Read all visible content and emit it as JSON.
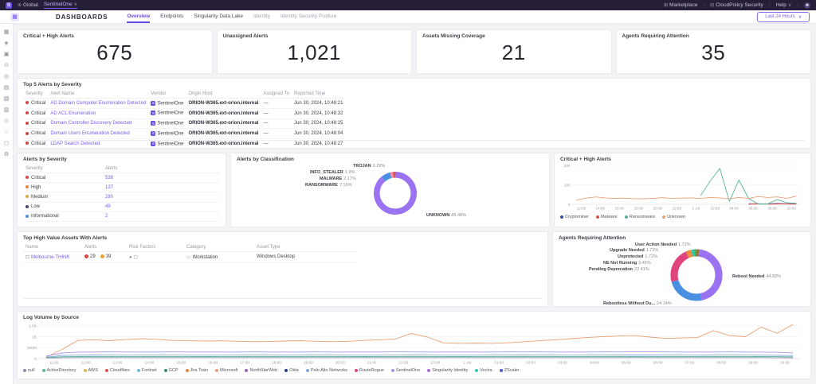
{
  "accent_color": "#6b4ee6",
  "topbar": {
    "product_initial": "S",
    "scope": "Global",
    "tenant": "SentinelOne",
    "marketplace": "Marketplace",
    "security_item": "CloudPolicy Security",
    "help": "Help"
  },
  "header": {
    "title": "DASHBOARDS",
    "tabs": [
      {
        "label": "Overview",
        "active": true
      },
      {
        "label": "Endpoints"
      },
      {
        "label": "Singularity Data Lake"
      },
      {
        "label": "Identity",
        "muted": true
      },
      {
        "label": "Identity Security Posture",
        "muted": true
      }
    ],
    "time_range_button": "Last 24 Hours"
  },
  "rail": {
    "icons": [
      {
        "name": "dashboards",
        "glyph": "▦"
      },
      {
        "name": "sentinels",
        "glyph": "◈"
      },
      {
        "name": "endpoints",
        "glyph": "▣"
      },
      {
        "name": "alerts",
        "glyph": "⊙"
      },
      {
        "name": "search",
        "glyph": "◎"
      },
      {
        "name": "graphs",
        "glyph": "▤"
      },
      {
        "name": "visibility",
        "glyph": "▧"
      },
      {
        "name": "reports",
        "glyph": "▥"
      },
      {
        "name": "policies",
        "glyph": "◇"
      },
      {
        "name": "network",
        "glyph": "○"
      },
      {
        "name": "tasks",
        "glyph": "◻"
      },
      {
        "name": "settings",
        "glyph": "⚙"
      }
    ]
  },
  "kpis": [
    {
      "title": "Critical + High Alerts",
      "value": "675"
    },
    {
      "title": "Unassigned Alerts",
      "value": "1,021"
    },
    {
      "title": "Assets Missing Coverage",
      "value": "21"
    },
    {
      "title": "Agents Requiring Attention",
      "value": "35"
    }
  ],
  "top_alerts": {
    "title": "Top 5 Alerts by Severity",
    "columns": [
      "Severity",
      "Alert Name",
      "Vendor",
      "Origin Host",
      "Assigned To",
      "Reported Time"
    ],
    "rows": [
      {
        "severity": "Critical",
        "severity_color": "#d04841",
        "name": "AD Domain Computer Enumeration Detected",
        "vendor": "SentinelOne",
        "origin": "ORION-W365.ext-orion.internal",
        "assigned": "—",
        "time": "Jun 30, 2024, 10:48:21"
      },
      {
        "severity": "Critical",
        "severity_color": "#d04841",
        "name": "AD ACL Enumeration",
        "vendor": "SentinelOne",
        "origin": "ORION-W365.ext-orion.internal",
        "assigned": "—",
        "time": "Jun 30, 2024, 10:48:32"
      },
      {
        "severity": "Critical",
        "severity_color": "#d04841",
        "name": "Domain Controller Discovery Detected",
        "vendor": "SentinelOne",
        "origin": "ORION-W365.ext-orion.internal",
        "assigned": "—",
        "time": "Jun 30, 2024, 10:48:25"
      },
      {
        "severity": "Critical",
        "severity_color": "#d04841",
        "name": "Domain Users Enumeration Detected",
        "vendor": "SentinelOne",
        "origin": "ORION-W365.ext-orion.internal",
        "assigned": "—",
        "time": "Jun 30, 2024, 10:48:04"
      },
      {
        "severity": "Critical",
        "severity_color": "#d04841",
        "name": "LDAP Search Detected",
        "vendor": "SentinelOne",
        "origin": "ORION-W365.ext-orion.internal",
        "assigned": "—",
        "time": "Jun 30, 2024, 10:48:27"
      }
    ]
  },
  "alerts_by_severity": {
    "title": "Alerts by Severity",
    "columns": [
      "Severity",
      "Alerts"
    ],
    "rows": [
      {
        "label": "Critical",
        "count": "538",
        "color": "#d04841"
      },
      {
        "label": "High",
        "count": "137",
        "color": "#e8833a"
      },
      {
        "label": "Medium",
        "count": "280",
        "color": "#d9a93a"
      },
      {
        "label": "Low",
        "count": "49",
        "color": "#4a4a68"
      },
      {
        "label": "Informational",
        "count": "2",
        "color": "#4a90e2"
      }
    ]
  },
  "high_value_assets": {
    "title": "Top High Value Assets With Alerts",
    "columns": [
      "Name",
      "Alerts",
      "Risk Factors",
      "Category",
      "Asset Type"
    ],
    "row": {
      "name": "Melbourne-THINK",
      "alert_badges": [
        {
          "count": "29",
          "color": "#d04841"
        },
        {
          "count": "39",
          "color": "#e8a13a"
        }
      ],
      "category": "Workstation",
      "asset_type": "Windows Desktop"
    }
  },
  "chart_data": [
    {
      "id": "alerts_by_classification",
      "type": "pie",
      "title": "Alerts by Classification",
      "donut": true,
      "slices": [
        {
          "label": "TROJAN",
          "pct": 0.29,
          "color": "#c4455e"
        },
        {
          "label": "UNKNOWN",
          "pct": 88.48,
          "color": "#9b72f2"
        },
        {
          "label": "RANSOMWARE",
          "pct": 7.16,
          "color": "#4a90e2"
        },
        {
          "label": "MALWARE",
          "pct": 2.17,
          "color": "#ef8ba7"
        },
        {
          "label": "INFO_STEALER",
          "pct": 1.9,
          "color": "#e05252"
        }
      ]
    },
    {
      "id": "critical_high_trend",
      "type": "line",
      "title": "Critical + High Alerts",
      "ylim": [
        0,
        200
      ],
      "yticks": [
        {
          "v": 0,
          "label": "0"
        },
        {
          "v": 100,
          "label": "100"
        },
        {
          "v": 200,
          "label": "200"
        }
      ],
      "xticks": [
        "12:00",
        "14:00",
        "16:00",
        "18:00",
        "20:00",
        "22:00",
        "1 Jul",
        "02:00",
        "04:00",
        "06:00",
        "08:00",
        "10:00"
      ],
      "legend_position": "bottom",
      "grid": true,
      "series": [
        {
          "name": "Cryptominer",
          "color": "#3b4a9f",
          "values": [
            null,
            null,
            null,
            null,
            null,
            null,
            null,
            null,
            null,
            null,
            null,
            null,
            null,
            null,
            null,
            null,
            null,
            null,
            2,
            3,
            2,
            4,
            3,
            2
          ]
        },
        {
          "name": "Malware",
          "color": "#d94f4f",
          "values": [
            null,
            null,
            null,
            null,
            null,
            null,
            null,
            null,
            null,
            null,
            null,
            null,
            null,
            null,
            null,
            null,
            null,
            null,
            1,
            2,
            1,
            2,
            2,
            1
          ]
        },
        {
          "name": "Ransomware",
          "color": "#54b397",
          "values": [
            null,
            null,
            null,
            null,
            null,
            null,
            null,
            null,
            null,
            null,
            null,
            null,
            null,
            45,
            120,
            185,
            15,
            125,
            30,
            2,
            2,
            25,
            8,
            5
          ]
        },
        {
          "name": "Unknown",
          "color": "#e8a075",
          "values": [
            22,
            32,
            38,
            33,
            30,
            32,
            29,
            28,
            31,
            34,
            30,
            32,
            33,
            30,
            35,
            33,
            28,
            35,
            30,
            40,
            35,
            38,
            30,
            42
          ]
        }
      ]
    },
    {
      "id": "agents_requiring_attention",
      "type": "pie",
      "title": "Agents Requiring Attention",
      "donut": true,
      "slices": [
        {
          "label": "User Action Needed",
          "pct": 1.72,
          "color": "#8a7a3a"
        },
        {
          "label": "Reboot Needed",
          "pct": 44.83,
          "color": "#9b72f2"
        },
        {
          "label": "Rebootless Without Du...",
          "pct": 24.14,
          "color": "#4a90e2"
        },
        {
          "label": "Pending Deprecation",
          "pct": 22.41,
          "color": "#e0447c"
        },
        {
          "label": "NE Not Running",
          "pct": 3.45,
          "color": "#f08c3a"
        },
        {
          "label": "Unprotected",
          "pct": 1.72,
          "color": "#36c6ad"
        },
        {
          "label": "Upgrade Needed",
          "pct": 1.72,
          "color": "#4caf50"
        }
      ]
    },
    {
      "id": "log_volume_by_source",
      "type": "line",
      "title": "Log Volume by Source",
      "ylim": [
        0,
        1600
      ],
      "yticks": [
        {
          "v": 0,
          "label": "0"
        },
        {
          "v": 500,
          "label": "500M"
        },
        {
          "v": 1000,
          "label": "1B"
        },
        {
          "v": 1500,
          "label": "1.5B"
        }
      ],
      "xticks": [
        "11:00",
        "12:00",
        "13:00",
        "14:00",
        "15:00",
        "16:00",
        "17:00",
        "18:00",
        "19:00",
        "20:00",
        "21:00",
        "22:00",
        "23:00",
        "1 Jul",
        "01:00",
        "02:00",
        "03:00",
        "04:00",
        "05:00",
        "06:00",
        "07:00",
        "08:00",
        "09:00",
        "10:00"
      ],
      "legend_position": "bottom",
      "grid": true,
      "series": [
        {
          "name": "Microsoft",
          "color": "#e8a075",
          "values": [
            60,
            420,
            830,
            860,
            820,
            870,
            910,
            880,
            830,
            810,
            800,
            810,
            790,
            770,
            780,
            800,
            820,
            790,
            770,
            790,
            830,
            860,
            900,
            1150,
            980,
            720,
            700,
            710,
            700,
            720,
            760,
            810,
            860,
            910,
            960,
            1000,
            1030,
            1050,
            980,
            920,
            940,
            960,
            1280,
            1050,
            1000,
            1440,
            1160,
            1560
          ]
        },
        {
          "name": "SentinelOne",
          "color": "#a490ec",
          "values": [
            110,
            250,
            295,
            300,
            303,
            300,
            298,
            300,
            302,
            300,
            298,
            297,
            300,
            302,
            300,
            298,
            300,
            302,
            300,
            298,
            297,
            300,
            304,
            302,
            300,
            298,
            297,
            298,
            300,
            302,
            303,
            302,
            300,
            298,
            300,
            302,
            303,
            305,
            304,
            302,
            300,
            298,
            300,
            302,
            300,
            296,
            288,
            258
          ]
        },
        {
          "name": "Palo Alto Networks",
          "color": "#7da7d9",
          "values": [
            55,
            140,
            158,
            162,
            160,
            158,
            159,
            161,
            160,
            158,
            157,
            158,
            160,
            161,
            160,
            158,
            160,
            161,
            160,
            158,
            157,
            158,
            160,
            162,
            160,
            158,
            157,
            158,
            160,
            161,
            162,
            161,
            160,
            158,
            160,
            161,
            162,
            163,
            162,
            161,
            160,
            158,
            160,
            161,
            160,
            157,
            150,
            138
          ]
        },
        {
          "name": "ActiveDirectory",
          "color": "#56b89a",
          "values": [
            40,
            85,
            92,
            95,
            94,
            93,
            94,
            95,
            94,
            93,
            92,
            93,
            94,
            95,
            94,
            93,
            94,
            95,
            94,
            93,
            92,
            93,
            94,
            95,
            94,
            93,
            92,
            93,
            94,
            95,
            95,
            94,
            94,
            93,
            94,
            95,
            95,
            96,
            95,
            94,
            94,
            93,
            94,
            95,
            94,
            92,
            88,
            80
          ]
        },
        {
          "name": "null",
          "color": "#8a8fa8",
          "values": [
            25,
            40,
            44,
            45,
            45,
            44,
            45,
            45,
            44,
            44,
            43,
            44,
            45,
            45,
            44,
            44,
            45,
            45,
            44,
            44,
            43,
            44,
            45,
            45,
            44,
            44,
            43,
            44,
            45,
            45,
            45,
            44,
            44,
            43,
            44,
            45,
            45,
            46,
            45,
            44,
            44,
            43,
            44,
            45,
            44,
            43,
            41,
            36
          ]
        }
      ],
      "legend": [
        {
          "label": "null",
          "color": "#8a8fa8"
        },
        {
          "label": "ActiveDirectory",
          "color": "#56b89a"
        },
        {
          "label": "AWS",
          "color": "#d9b64f"
        },
        {
          "label": "Cloudflare",
          "color": "#d94f4f"
        },
        {
          "label": "Fortinet",
          "color": "#73b8de"
        },
        {
          "label": "GCP",
          "color": "#3a8f6a"
        },
        {
          "label": "Jira Train",
          "color": "#e8833a"
        },
        {
          "label": "Microsoft",
          "color": "#e8a075"
        },
        {
          "label": "NorthStarWeb",
          "color": "#9a60b4"
        },
        {
          "label": "Okta",
          "color": "#2b3a8f"
        },
        {
          "label": "Palo Alto Networks",
          "color": "#7da7d9"
        },
        {
          "label": "RouteRogue",
          "color": "#e0447c"
        },
        {
          "label": "SentinelOne",
          "color": "#a490ec"
        },
        {
          "label": "Singularity Identity",
          "color": "#b06ad9"
        },
        {
          "label": "Vectra",
          "color": "#36c6ad"
        },
        {
          "label": "ZScaler",
          "color": "#4a5fc1"
        }
      ]
    }
  ]
}
